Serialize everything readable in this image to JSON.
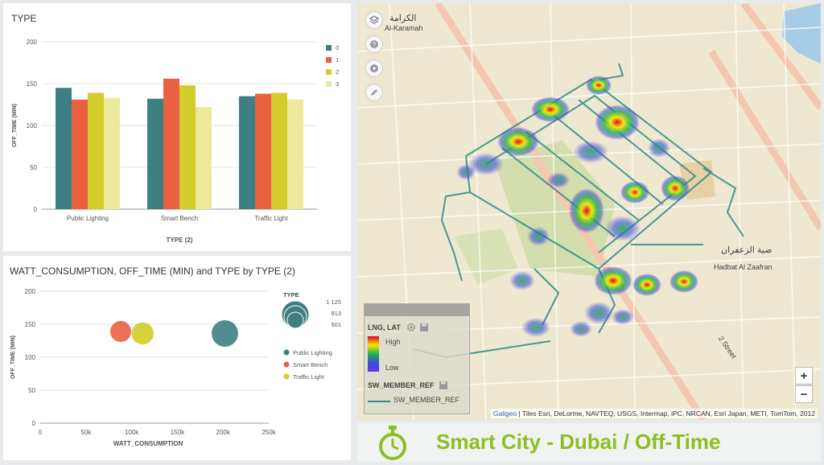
{
  "bar_panel": {
    "title": "TYPE",
    "chart_data": {
      "type": "bar",
      "categories": [
        "Public Lighting",
        "Smart Bench",
        "Traffic Light"
      ],
      "series": [
        {
          "name": "0",
          "color": "#3e7f82",
          "values": [
            145,
            132,
            135
          ]
        },
        {
          "name": "1",
          "color": "#ea6142",
          "values": [
            131,
            156,
            138
          ]
        },
        {
          "name": "2",
          "color": "#d2cd2a",
          "values": [
            139,
            148,
            139
          ]
        },
        {
          "name": "3",
          "color": "#ece99b",
          "values": [
            133,
            122,
            131
          ]
        }
      ],
      "xlabel": "TYPE (2)",
      "ylabel": "OFF_TIME (MIN)",
      "ylim": [
        0,
        200
      ],
      "yticks": [
        "0",
        "50",
        "100",
        "150",
        "200"
      ],
      "legend": "right",
      "grid": true
    }
  },
  "bubble_panel": {
    "title": "WATT_CONSUMPTION, OFF_TIME (MIN) and TYPE by TYPE (2)",
    "chart_data": {
      "type": "scatter",
      "points": [
        {
          "name": "Public Lighting",
          "x": 202000,
          "y": 136,
          "size": 1125,
          "color": "#3e7f82"
        },
        {
          "name": "Smart Bench",
          "x": 88000,
          "y": 139,
          "size": 501,
          "color": "#ea6142"
        },
        {
          "name": "Traffic Light",
          "x": 112000,
          "y": 136,
          "size": 610,
          "color": "#d2cd2a"
        }
      ],
      "xlabel": "WATT_CONSUMPTION",
      "ylabel": "OFF_TIME (MIN)",
      "xlim": [
        0,
        250000
      ],
      "ylim": [
        0,
        200
      ],
      "xticks": [
        "0",
        "50k",
        "100k",
        "150k",
        "200k",
        "250k"
      ],
      "yticks": [
        "0",
        "50",
        "100",
        "150",
        "200"
      ],
      "size_legend": {
        "title": "TYPE",
        "values": [
          "1 125",
          "813",
          "501"
        ]
      },
      "legend": "right",
      "grid": true
    }
  },
  "map": {
    "place_karamah_ar": "الكرامة",
    "place_karamah": "Al-Karamah",
    "place_zaafran_ar": "ضية الزعفران",
    "place_zaafran": "Hadbat Al Zaafran",
    "street": "2 Street",
    "legend_layer": "LNG, LAT",
    "legend_high": "High",
    "legend_low": "Low",
    "legend_ref_title": "SW_MEMBER_REF",
    "legend_ref_item": "SW_MEMBER_REF",
    "zoom_in": "+",
    "zoom_out": "−",
    "attribution_brand": "Galigeo",
    "attribution_text": " | Tiles Esri, DeLorme, NAVTEQ, USGS, Intermap, iPC, NRCAN, Esri Japan, METI, TomTom, 2012"
  },
  "app_title": "Smart City - Dubai / Off-Time",
  "icons": {
    "layers": "layers-icon",
    "help": "help-icon",
    "play": "play-icon",
    "draw": "pencil-icon",
    "settings": "gear-icon",
    "save": "save-icon",
    "logo": "stopwatch-icon"
  }
}
